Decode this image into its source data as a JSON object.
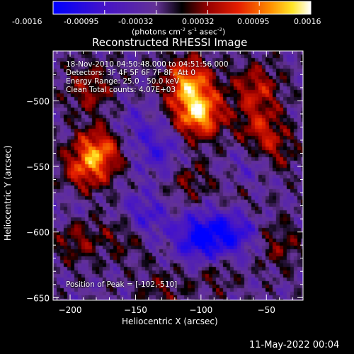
{
  "colorbar": {
    "ticks": [
      "-0.0016",
      "-0.00095",
      "-0.00032",
      "0.00032",
      "0.00095",
      "0.0016"
    ],
    "unit_label": "(photons cm",
    "unit_exp1": "-2",
    "unit_mid": " s",
    "unit_exp2": "-1",
    "unit_tail": " asec",
    "unit_exp3": "-2",
    "unit_close": ")"
  },
  "chart_data": {
    "type": "heatmap",
    "title": "Reconstructed RHESSI Image",
    "xlabel": "Heliocentric X (arcsec)",
    "ylabel": "Heliocentric Y (arcsec)",
    "xlim": [
      -213,
      -22
    ],
    "ylim": [
      -652,
      -462
    ],
    "x_ticks": [
      -200,
      -150,
      -100,
      -50
    ],
    "y_ticks": [
      -500,
      -550,
      -600,
      -650
    ],
    "x_tick_labels": [
      "−200",
      "−150",
      "−100",
      "−50"
    ],
    "y_tick_labels": [
      "−500",
      "−550",
      "−600",
      "−650"
    ],
    "value_range": [
      -0.0016,
      0.0016
    ],
    "peak": [
      -102,
      -510
    ],
    "hotspots": [
      {
        "x": -102,
        "y": -510,
        "value": 0.0016
      },
      {
        "x": -110,
        "y": -485,
        "value": 0.0013
      },
      {
        "x": -178,
        "y": -538,
        "value": 0.0012
      },
      {
        "x": -190,
        "y": -555,
        "value": 0.0008
      },
      {
        "x": -185,
        "y": -490,
        "value": 0.0007
      },
      {
        "x": -58,
        "y": -490,
        "value": 0.0008
      },
      {
        "x": -55,
        "y": -520,
        "value": 0.0007
      },
      {
        "x": -45,
        "y": -540,
        "value": 0.0006
      },
      {
        "x": -155,
        "y": -600,
        "value": 0.0007
      },
      {
        "x": -195,
        "y": -605,
        "value": 0.0006
      },
      {
        "x": -110,
        "y": -560,
        "value": 0.0005
      },
      {
        "x": -90,
        "y": -630,
        "value": 0.0004
      },
      {
        "x": -40,
        "y": -610,
        "value": 0.0005
      },
      {
        "x": -130,
        "y": -645,
        "value": 0.0004
      },
      {
        "x": -70,
        "y": -575,
        "value": 0.0003
      }
    ],
    "coldspots": [
      {
        "x": -100,
        "y": -605,
        "value": -0.0013
      },
      {
        "x": -145,
        "y": -590,
        "value": -0.0009
      },
      {
        "x": -75,
        "y": -600,
        "value": -0.0009
      },
      {
        "x": -130,
        "y": -540,
        "value": -0.0006
      },
      {
        "x": -60,
        "y": -550,
        "value": -0.0005
      },
      {
        "x": -150,
        "y": -520,
        "value": -0.0004
      },
      {
        "x": -200,
        "y": -580,
        "value": -0.0003
      }
    ]
  },
  "overlay": {
    "line1": "18-Nov-2010 04:50:48.000 to 04:51:56.000",
    "line2": "Detectors: 3F 4F 5F 6F 7F 8F, Att 0",
    "line3": "Energy Range: 25.0 - 50.0 keV",
    "line4": "Clean     Total counts: 4.07E+03",
    "peak_text": "Position of Peak = [-102,-510]"
  },
  "footer": {
    "timestamp": "11-May-2022 00:04"
  },
  "colors": {
    "background": "#000000",
    "foreground": "#ffffff",
    "cmap_low": "#0000ff",
    "cmap_mid": "#000000",
    "cmap_high": "#ffffff"
  }
}
